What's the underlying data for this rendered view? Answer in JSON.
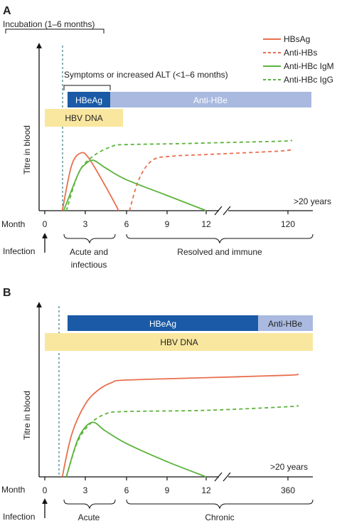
{
  "colors": {
    "hbsag": "#e8704e",
    "anti_hbc": "#5bb43c",
    "hbeag_bar": "#1a5aa6",
    "anti_hbe_bar": "#a9b9df",
    "hbv_dna_bar": "#f9e79f",
    "axis": "#111111",
    "incubation_line": "#3a7d8a"
  },
  "chart_data": [
    {
      "panel": "A",
      "type": "line",
      "ylabel": "Titre in blood",
      "xlabel": "Month",
      "x_ticks": [
        "0",
        "3",
        "6",
        "9",
        "12",
        "120"
      ],
      "x_break_after": "12",
      "far_label": ">20 years",
      "legend": [
        "HBsAg",
        "Anti-HBs",
        "Anti-HBc IgM",
        "Anti-HBc IgG"
      ],
      "incubation_label": "Incubation (1–6 months)",
      "symptoms_label": "Symptoms or increased ALT (<1–6 months)",
      "bars": {
        "hbeag": {
          "label": "HBeAg",
          "from": 1.5,
          "to": 4.8
        },
        "anti_hbe": {
          "label": "Anti-HBe",
          "from": 4.8,
          "to": 120
        },
        "hbv_dna": {
          "label": "HBV DNA",
          "from": 0,
          "to": 5.2
        }
      },
      "phases": [
        {
          "label": "Acute and infectious",
          "lines": [
            "Acute and",
            "infectious"
          ],
          "from": 1.5,
          "to": 5.5
        },
        {
          "label": "Resolved and immune",
          "lines": [
            "Resolved and immune"
          ],
          "from": 6,
          "to": 120
        }
      ],
      "annotations": {
        "start_arrow": "Infection"
      },
      "ylim": [
        0,
        100
      ],
      "series": [
        {
          "name": "HBsAg",
          "style": "solid",
          "color": "#e8704e",
          "points": [
            [
              1.3,
              0
            ],
            [
              2,
              55
            ],
            [
              2.7,
              70
            ],
            [
              3.3,
              63
            ],
            [
              4.5,
              30
            ],
            [
              5.5,
              0
            ]
          ]
        },
        {
          "name": "Anti-HBs",
          "style": "dashed",
          "color": "#e8704e",
          "points": [
            [
              6.3,
              0
            ],
            [
              7,
              38
            ],
            [
              8,
              61
            ],
            [
              9.5,
              66
            ],
            [
              12,
              68
            ],
            [
              100,
              72
            ],
            [
              128,
              74
            ]
          ]
        },
        {
          "name": "Anti-HBc IgM",
          "style": "solid",
          "color": "#5bb43c",
          "points": [
            [
              1.4,
              0
            ],
            [
              2.5,
              45
            ],
            [
              3,
              56
            ],
            [
              3.6,
              61
            ],
            [
              4.5,
              52
            ],
            [
              6,
              38
            ],
            [
              9,
              19
            ],
            [
              12,
              0
            ]
          ]
        },
        {
          "name": "Anti-HBc IgG",
          "style": "dashed",
          "color": "#5bb43c",
          "points": [
            [
              1.6,
              0
            ],
            [
              2.5,
              45
            ],
            [
              3.5,
              65
            ],
            [
              5,
              78
            ],
            [
              6,
              80
            ],
            [
              9.5,
              81
            ],
            [
              12,
              82
            ],
            [
              100,
              84
            ],
            [
              128,
              85
            ]
          ]
        }
      ]
    },
    {
      "panel": "B",
      "type": "line",
      "ylabel": "Titre in blood",
      "xlabel": "Month",
      "x_ticks": [
        "0",
        "3",
        "6",
        "9",
        "12",
        "360"
      ],
      "x_break_after": "12",
      "far_label": ">20 years",
      "bars": {
        "hbeag": {
          "label": "HBeAg",
          "from": 1.5,
          "to": 360
        },
        "anti_hbe": {
          "label": "Anti-HBe",
          "from": 360,
          "to": 400
        },
        "hbv_dna": {
          "label": "HBV DNA",
          "from": 0,
          "to": 400
        }
      },
      "phases": [
        {
          "label": "Acute",
          "lines": [
            "Acute"
          ],
          "from": 1.5,
          "to": 5.5
        },
        {
          "label": "Chronic",
          "lines": [
            "Chronic"
          ],
          "from": 6,
          "to": 400
        }
      ],
      "annotations": {
        "start_arrow": "Infection"
      },
      "ylim": [
        0,
        100
      ],
      "series": [
        {
          "name": "HBsAg",
          "style": "solid",
          "color": "#e8704e",
          "points": [
            [
              1.3,
              0
            ],
            [
              2,
              35
            ],
            [
              3,
              60
            ],
            [
              4,
              72
            ],
            [
              5,
              78
            ],
            [
              6,
              80
            ],
            [
              12,
              82
            ],
            [
              360,
              84
            ],
            [
              420,
              85
            ]
          ]
        },
        {
          "name": "Anti-HBc IgG",
          "style": "dashed",
          "color": "#5bb43c",
          "points": [
            [
              1.6,
              0
            ],
            [
              2.4,
              28
            ],
            [
              3.3,
              43
            ],
            [
              4.5,
              52
            ],
            [
              6,
              54
            ],
            [
              12,
              55
            ],
            [
              360,
              58
            ],
            [
              420,
              59
            ]
          ]
        },
        {
          "name": "Anti-HBc IgM",
          "style": "solid",
          "color": "#5bb43c",
          "points": [
            [
              1.6,
              0
            ],
            [
              2.5,
              32
            ],
            [
              3.5,
              45
            ],
            [
              4.5,
              38
            ],
            [
              6,
              28
            ],
            [
              9,
              13
            ],
            [
              12,
              0
            ]
          ]
        }
      ]
    }
  ]
}
